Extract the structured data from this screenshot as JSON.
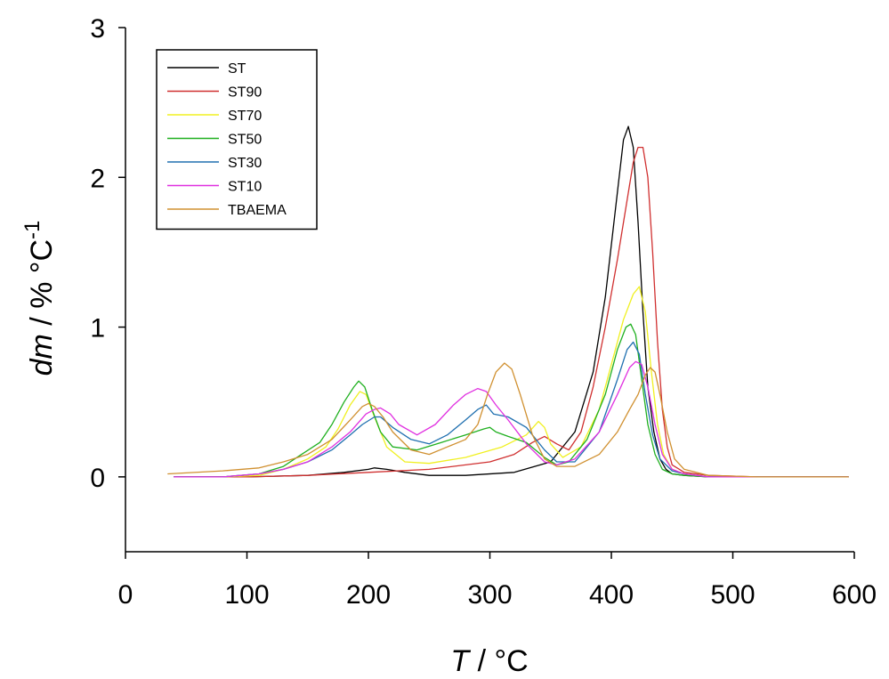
{
  "chart_data": {
    "type": "line",
    "xlabel": {
      "italic": "T",
      "rest": " / °C"
    },
    "ylabel": {
      "italic": "dm",
      "rest": " / % °C",
      "sup": "-1"
    },
    "xlim": [
      0,
      600
    ],
    "ylim": [
      -0.5,
      3
    ],
    "xticks": [
      "0",
      "100",
      "200",
      "300",
      "400",
      "500",
      "600"
    ],
    "yticks": [
      "0",
      "1",
      "2",
      "3"
    ],
    "xtick_values": [
      0,
      100,
      200,
      300,
      400,
      500,
      600
    ],
    "ytick_values": [
      0,
      1,
      2,
      3
    ],
    "grid": false,
    "legend_position": "top-left",
    "series": [
      {
        "name": "ST",
        "color": "#000000",
        "x": [
          40,
          100,
          150,
          180,
          200,
          205,
          215,
          230,
          250,
          280,
          320,
          350,
          370,
          385,
          395,
          405,
          410,
          414,
          418,
          422,
          426,
          430,
          435,
          440,
          445,
          450,
          460,
          480,
          520,
          560,
          595
        ],
        "y": [
          0.0,
          0.0,
          0.01,
          0.03,
          0.05,
          0.06,
          0.05,
          0.03,
          0.01,
          0.01,
          0.03,
          0.1,
          0.3,
          0.7,
          1.2,
          1.9,
          2.25,
          2.34,
          2.2,
          1.7,
          1.1,
          0.6,
          0.3,
          0.12,
          0.05,
          0.02,
          0.01,
          0.0,
          0.0,
          0.0,
          0.0
        ]
      },
      {
        "name": "ST90",
        "color": "#d03030",
        "x": [
          40,
          100,
          150,
          200,
          250,
          300,
          320,
          335,
          345,
          355,
          365,
          375,
          385,
          395,
          405,
          412,
          418,
          422,
          426,
          430,
          434,
          438,
          442,
          446,
          450,
          460,
          480,
          520,
          560,
          595
        ],
        "y": [
          0.0,
          0.0,
          0.01,
          0.03,
          0.05,
          0.1,
          0.15,
          0.23,
          0.27,
          0.22,
          0.18,
          0.3,
          0.6,
          1.0,
          1.45,
          1.8,
          2.1,
          2.2,
          2.2,
          2.0,
          1.5,
          0.9,
          0.45,
          0.2,
          0.08,
          0.03,
          0.01,
          0.0,
          0.0,
          0.0
        ]
      },
      {
        "name": "ST70",
        "color": "#f0f020",
        "x": [
          40,
          80,
          110,
          130,
          150,
          165,
          175,
          185,
          193,
          198,
          205,
          215,
          230,
          250,
          280,
          310,
          330,
          340,
          345,
          350,
          360,
          375,
          390,
          400,
          410,
          418,
          423,
          428,
          433,
          438,
          443,
          450,
          460,
          480,
          520,
          595
        ],
        "y": [
          0.0,
          0.0,
          0.01,
          0.05,
          0.12,
          0.2,
          0.32,
          0.48,
          0.57,
          0.55,
          0.4,
          0.2,
          0.1,
          0.09,
          0.13,
          0.2,
          0.28,
          0.37,
          0.33,
          0.22,
          0.13,
          0.2,
          0.45,
          0.75,
          1.05,
          1.22,
          1.27,
          1.1,
          0.7,
          0.35,
          0.15,
          0.05,
          0.02,
          0.0,
          0.0,
          0.0
        ]
      },
      {
        "name": "ST50",
        "color": "#20b020",
        "x": [
          40,
          80,
          110,
          130,
          145,
          160,
          170,
          180,
          188,
          192,
          197,
          203,
          210,
          220,
          240,
          260,
          280,
          295,
          300,
          305,
          315,
          330,
          345,
          355,
          365,
          380,
          395,
          405,
          412,
          416,
          420,
          425,
          430,
          436,
          442,
          450,
          460,
          480,
          520,
          595
        ],
        "y": [
          0.0,
          0.0,
          0.02,
          0.07,
          0.15,
          0.23,
          0.35,
          0.5,
          0.6,
          0.64,
          0.6,
          0.45,
          0.3,
          0.2,
          0.18,
          0.23,
          0.28,
          0.32,
          0.33,
          0.3,
          0.27,
          0.23,
          0.13,
          0.08,
          0.1,
          0.25,
          0.55,
          0.85,
          1.0,
          1.02,
          0.95,
          0.65,
          0.35,
          0.15,
          0.05,
          0.02,
          0.01,
          0.0,
          0.0,
          0.0
        ]
      },
      {
        "name": "ST30",
        "color": "#2070b0",
        "x": [
          40,
          80,
          110,
          130,
          150,
          170,
          185,
          195,
          205,
          210,
          220,
          235,
          250,
          265,
          280,
          290,
          297,
          303,
          315,
          330,
          345,
          355,
          370,
          390,
          405,
          413,
          418,
          423,
          428,
          434,
          440,
          450,
          460,
          480,
          520,
          595
        ],
        "y": [
          0.0,
          0.0,
          0.02,
          0.05,
          0.1,
          0.18,
          0.28,
          0.35,
          0.4,
          0.4,
          0.33,
          0.25,
          0.22,
          0.28,
          0.38,
          0.45,
          0.48,
          0.42,
          0.4,
          0.33,
          0.18,
          0.1,
          0.1,
          0.3,
          0.65,
          0.85,
          0.9,
          0.82,
          0.55,
          0.28,
          0.12,
          0.04,
          0.02,
          0.0,
          0.0,
          0.0
        ]
      },
      {
        "name": "ST10",
        "color": "#e030e0",
        "x": [
          40,
          80,
          110,
          130,
          150,
          170,
          185,
          198,
          205,
          210,
          218,
          225,
          240,
          255,
          270,
          280,
          290,
          297,
          305,
          315,
          330,
          345,
          355,
          370,
          390,
          405,
          415,
          420,
          425,
          430,
          436,
          442,
          450,
          460,
          480,
          520,
          595
        ],
        "y": [
          0.0,
          0.0,
          0.02,
          0.05,
          0.1,
          0.2,
          0.3,
          0.42,
          0.45,
          0.46,
          0.42,
          0.35,
          0.28,
          0.35,
          0.48,
          0.55,
          0.59,
          0.57,
          0.48,
          0.38,
          0.22,
          0.1,
          0.08,
          0.12,
          0.3,
          0.55,
          0.73,
          0.77,
          0.75,
          0.6,
          0.35,
          0.15,
          0.05,
          0.02,
          0.0,
          0.0,
          0.0
        ]
      },
      {
        "name": "TBAEMA",
        "color": "#d09030",
        "x": [
          35,
          80,
          110,
          130,
          150,
          170,
          185,
          195,
          200,
          205,
          212,
          220,
          235,
          250,
          265,
          280,
          290,
          298,
          305,
          312,
          318,
          325,
          335,
          345,
          355,
          370,
          390,
          405,
          415,
          422,
          428,
          432,
          436,
          440,
          446,
          452,
          460,
          480,
          520,
          595
        ],
        "y": [
          0.02,
          0.04,
          0.06,
          0.1,
          0.15,
          0.25,
          0.38,
          0.47,
          0.49,
          0.47,
          0.4,
          0.3,
          0.18,
          0.15,
          0.2,
          0.25,
          0.35,
          0.55,
          0.7,
          0.76,
          0.72,
          0.55,
          0.28,
          0.12,
          0.07,
          0.07,
          0.15,
          0.3,
          0.45,
          0.55,
          0.68,
          0.73,
          0.7,
          0.55,
          0.3,
          0.12,
          0.05,
          0.01,
          0.0,
          0.0
        ]
      }
    ]
  }
}
